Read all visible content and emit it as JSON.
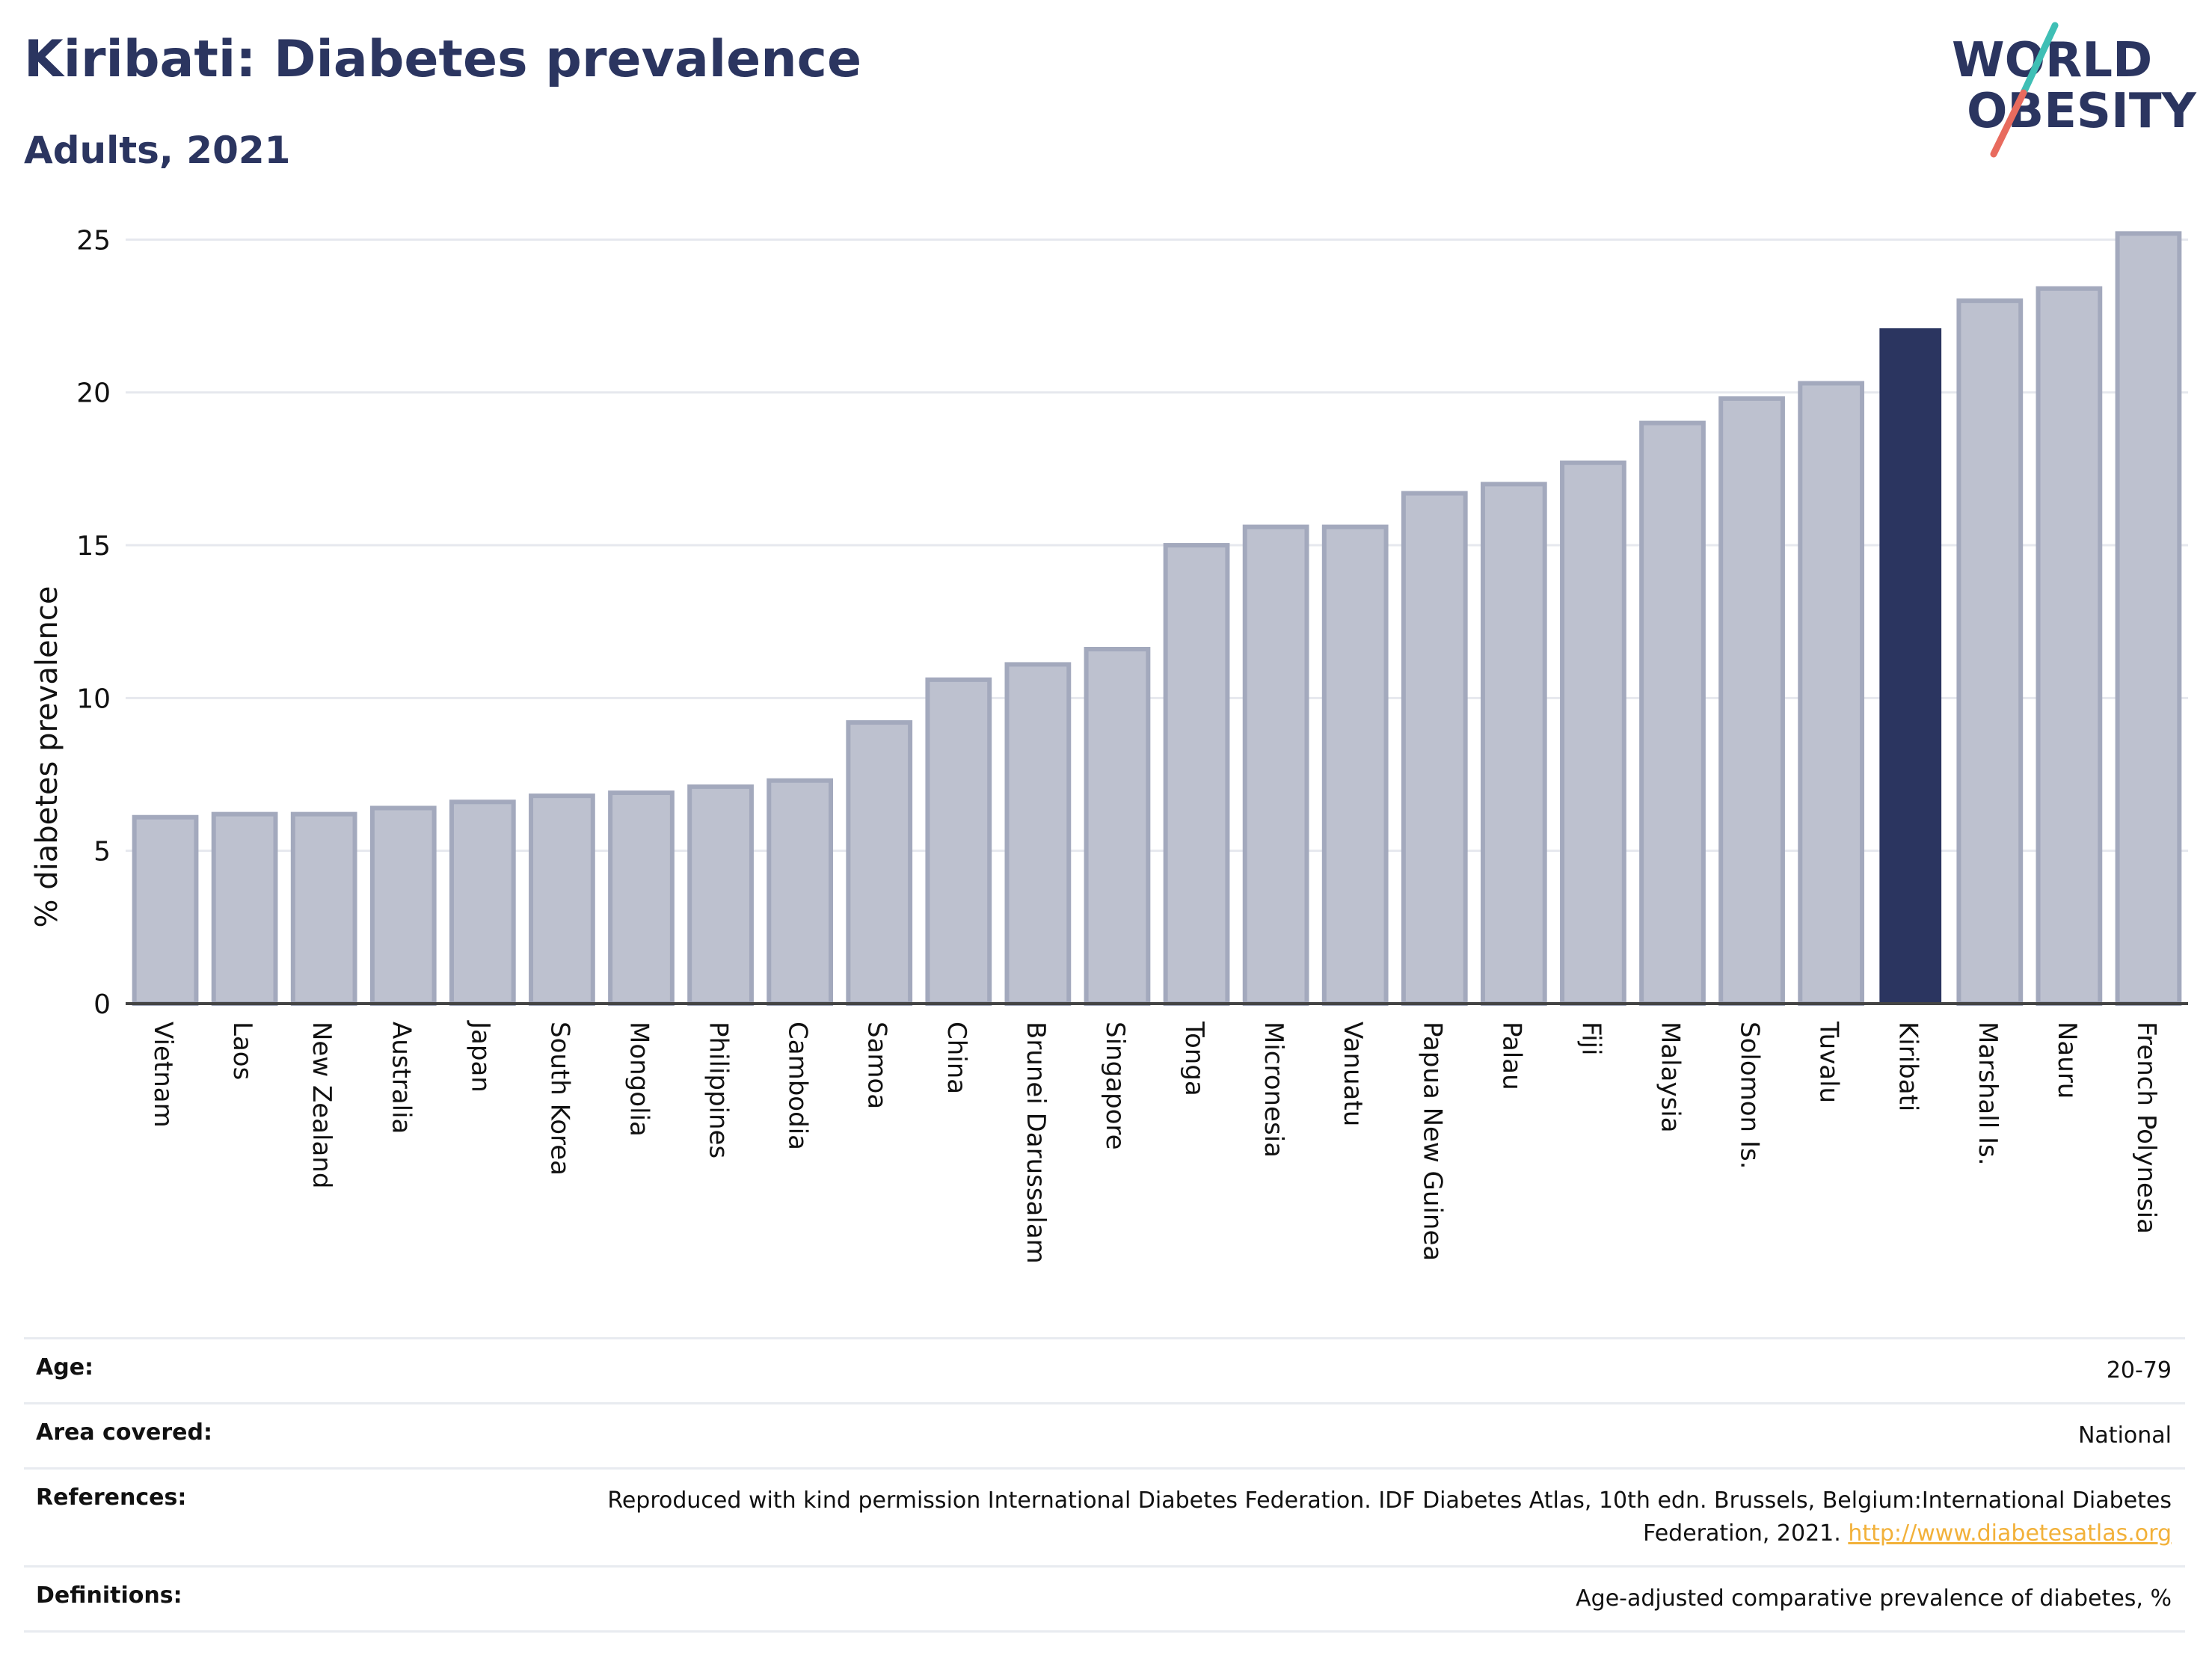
{
  "header": {
    "title": "Kiribati: Diabetes prevalence",
    "subtitle": "Adults, 2021"
  },
  "logo": {
    "line1": "WORLD",
    "line2": "OBESITY",
    "colors": {
      "text": "#2b3560",
      "slash_top": "#3fbfb5",
      "slash_bottom": "#e86b5e"
    }
  },
  "chart_data": {
    "type": "bar",
    "title": "",
    "xlabel": "",
    "ylabel": "% diabetes prevalence",
    "ylim": [
      0,
      25.5
    ],
    "yticks": [
      0,
      5,
      10,
      15,
      20,
      25
    ],
    "grid": true,
    "highlight": "Kiribati",
    "colors": {
      "bar": "#bdc1cf",
      "bar_edge": "#a3a9bd",
      "highlight": "#2b3560",
      "grid": "#e6e8ee",
      "axis": "#444444"
    },
    "categories": [
      "Vietnam",
      "Laos",
      "New Zealand",
      "Australia",
      "Japan",
      "South Korea",
      "Mongolia",
      "Philippines",
      "Cambodia",
      "Samoa",
      "China",
      "Brunei Darussalam",
      "Singapore",
      "Tonga",
      "Micronesia",
      "Vanuatu",
      "Papua New Guinea",
      "Palau",
      "Fiji",
      "Malaysia",
      "Solomon Is.",
      "Tuvalu",
      "Kiribati",
      "Marshall Is.",
      "Nauru",
      "French Polynesia"
    ],
    "values": [
      6.1,
      6.2,
      6.2,
      6.4,
      6.6,
      6.8,
      6.9,
      7.1,
      7.3,
      9.2,
      10.6,
      11.1,
      11.6,
      15.0,
      15.6,
      15.6,
      16.7,
      17.0,
      17.7,
      19.0,
      19.8,
      20.3,
      22.1,
      23.0,
      23.4,
      25.2
    ]
  },
  "meta": {
    "age_label": "Age:",
    "age_value": "20-79",
    "area_label": "Area covered:",
    "area_value": "National",
    "references_label": "References:",
    "references_text": "Reproduced with kind permission International Diabetes Federation.  IDF Diabetes Atlas, 10th edn. Brussels, Belgium:International Diabetes Federation, 2021. ",
    "references_link": "http://www.diabetesatlas.org",
    "definitions_label": "Definitions:",
    "definitions_value": "Age-adjusted comparative prevalence of diabetes, %"
  }
}
